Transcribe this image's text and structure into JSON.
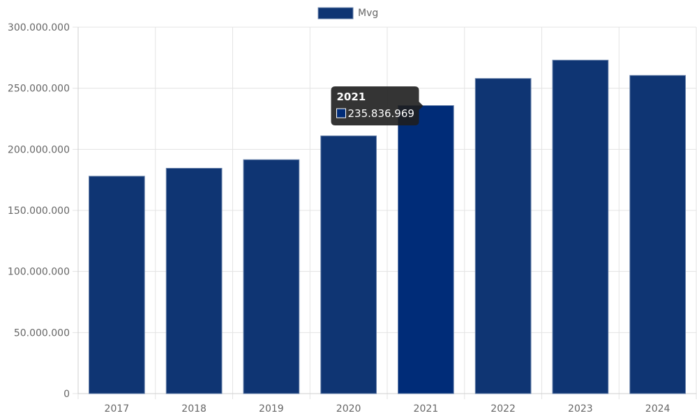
{
  "chart_data": {
    "type": "bar",
    "categories": [
      "2017",
      "2018",
      "2019",
      "2020",
      "2021",
      "2022",
      "2023",
      "2024"
    ],
    "series": [
      {
        "name": "Mvg",
        "values": [
          178000000,
          184500000,
          191500000,
          211000000,
          235836969,
          258000000,
          273000000,
          260500000
        ]
      }
    ],
    "ylim": [
      0,
      300000000
    ],
    "y_ticks": [
      "0",
      "50.000.000",
      "100.000.000",
      "150.000.000",
      "200.000.000",
      "250.000.000",
      "300.000.000"
    ],
    "grid": true,
    "legend_position": "top-center",
    "colors": {
      "bar": "#0f3573",
      "bar_hover": "#002c78",
      "bar_border": "#6d86ad",
      "grid": "#e3e3e3",
      "tooltip_bg": "#1e1e1e"
    },
    "tooltip": {
      "category_index": 4,
      "title": "2021",
      "value_text": "235.836.969"
    }
  }
}
